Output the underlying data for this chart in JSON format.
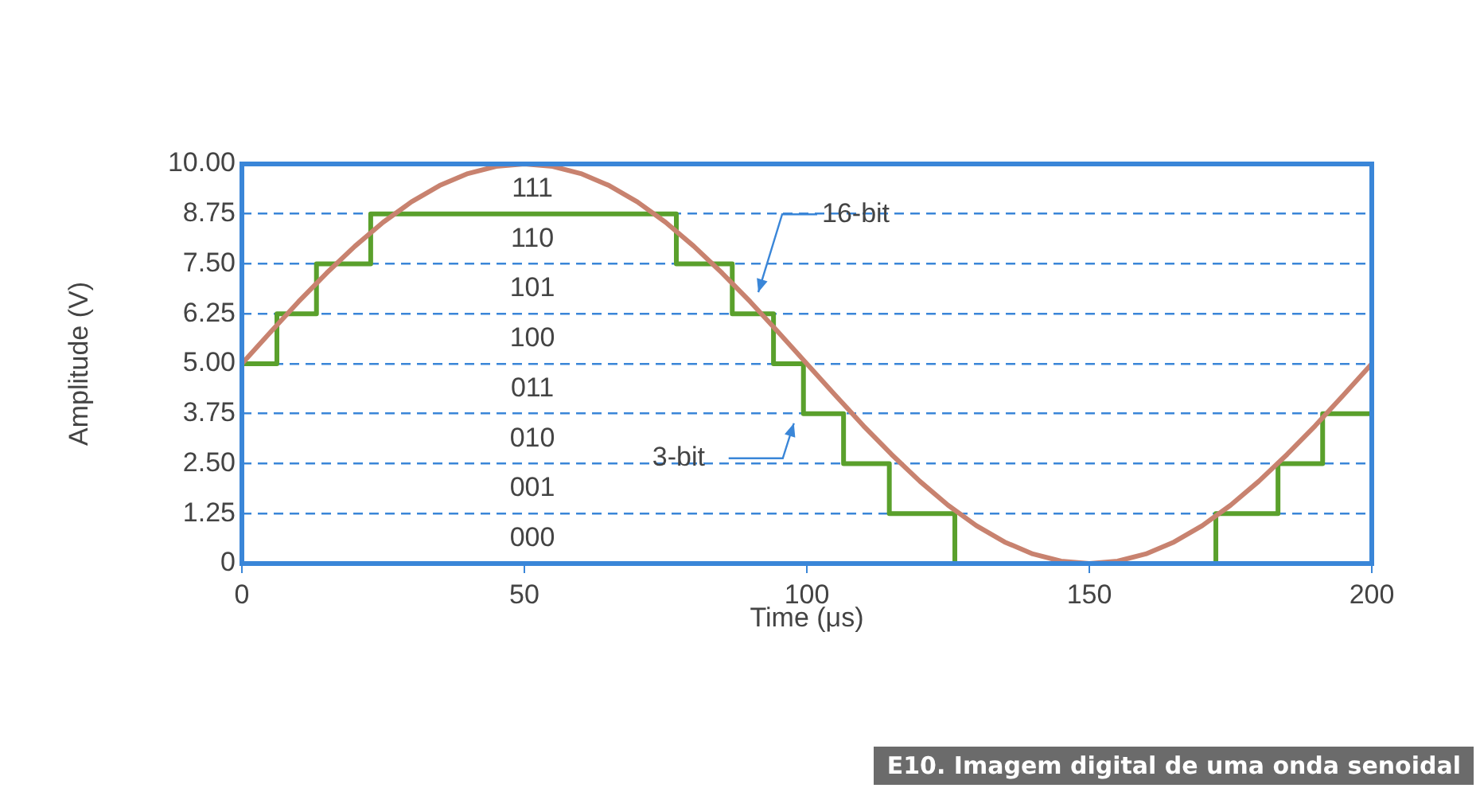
{
  "chart_data": {
    "type": "line",
    "xlabel": "Time (μs)",
    "ylabel": "Amplitude (V)",
    "xlim": [
      0,
      200
    ],
    "xticks": [
      0,
      50,
      100,
      150,
      200
    ],
    "ylim": [
      0,
      10
    ],
    "yticks": [
      0,
      1.25,
      {
        "value": 2.5,
        "label": "2.50"
      },
      3.75,
      {
        "value": 5,
        "label": "5.00"
      },
      6.25,
      {
        "value": 7.5,
        "label": "7.50"
      },
      8.75,
      {
        "value": 10,
        "label": "10.00"
      }
    ],
    "grid": "y",
    "legend": false,
    "marker": "none",
    "series": [
      {
        "color": "#c8826f",
        "x": [
          0,
          5,
          10,
          15,
          20,
          25,
          30,
          35,
          40,
          45,
          50,
          55,
          60,
          65,
          70,
          75,
          80,
          85,
          90,
          95,
          100,
          105,
          110,
          115,
          120,
          125,
          130,
          135,
          140,
          145,
          150,
          155,
          160,
          165,
          170,
          175,
          180,
          185,
          190,
          195,
          200
        ],
        "values": [
          5,
          5.78,
          6.55,
          7.27,
          7.94,
          8.54,
          9.05,
          9.46,
          9.76,
          9.94,
          10,
          9.94,
          9.76,
          9.46,
          9.05,
          8.54,
          7.94,
          7.27,
          6.55,
          5.78,
          5,
          4.22,
          3.45,
          2.73,
          2.06,
          1.46,
          0.95,
          0.54,
          0.24,
          0.06,
          0,
          0.06,
          0.24,
          0.54,
          0.95,
          1.46,
          2.06,
          2.73,
          3.45,
          4.22,
          5
        ]
      },
      {
        "type": "step",
        "color": "#5aa02c",
        "x": [
          0,
          6.2,
          13.2,
          22.8,
          76.9,
          86.8,
          94.1,
          99.4,
          106.5,
          114.6,
          126.2,
          172.4,
          183.4,
          191.3,
          200
        ],
        "values": [
          5,
          6.25,
          7.5,
          8.75,
          7.5,
          6.25,
          5,
          3.75,
          2.5,
          1.25,
          0,
          1.25,
          2.5,
          3.75,
          3.75
        ]
      }
    ],
    "annotations": [
      {
        "text": "16-bit",
        "x": 90,
        "y": 6.55
      },
      {
        "text": "3-bit",
        "x": 99.4,
        "y": 3.75
      },
      "111",
      "110",
      "101",
      "100",
      "011",
      "010",
      "001",
      "000",
      "E10. Imagem digital de uma onda senoidal"
    ]
  }
}
